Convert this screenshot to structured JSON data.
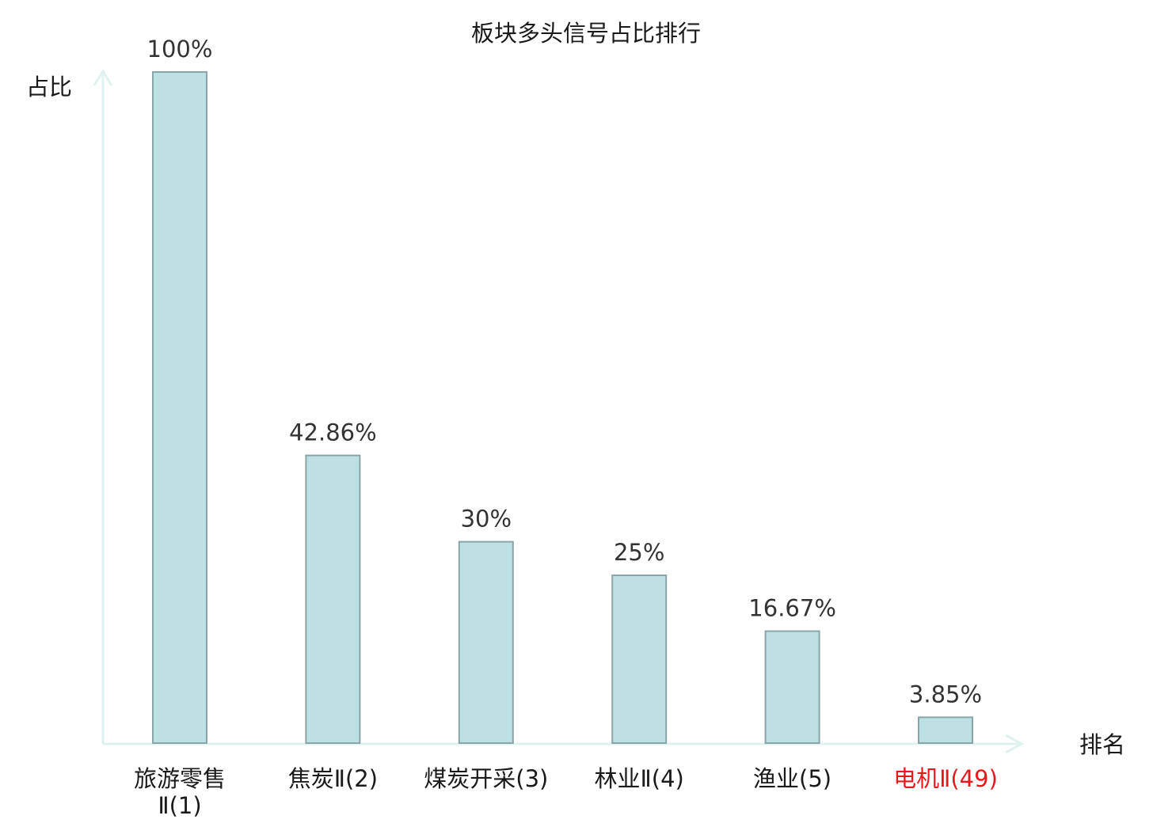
{
  "chart_data": {
    "type": "bar",
    "title": "板块多头信号占比排行",
    "ylabel": "占比",
    "xlabel": "排名",
    "ylim": [
      0,
      100
    ],
    "grid": false,
    "categories": [
      [
        "旅游零售",
        "Ⅱ(1)"
      ],
      [
        "焦炭Ⅱ(2)"
      ],
      [
        "煤炭开采(3)"
      ],
      [
        "林业Ⅱ(4)"
      ],
      [
        "渔业(5)"
      ],
      [
        "电机Ⅱ(49)"
      ]
    ],
    "values": [
      100,
      42.86,
      30,
      25,
      16.67,
      3.85
    ],
    "value_labels": [
      "100%",
      "42.86%",
      "30%",
      "25%",
      "16.67%",
      "3.85%"
    ],
    "highlight_index": 5,
    "colors": {
      "bar_fill": "#bde0e3",
      "bar_stroke": "#8aa5a8",
      "axis": "#dff2ef",
      "highlight_text": "#e8191d",
      "text": "#1a1a1a"
    }
  }
}
